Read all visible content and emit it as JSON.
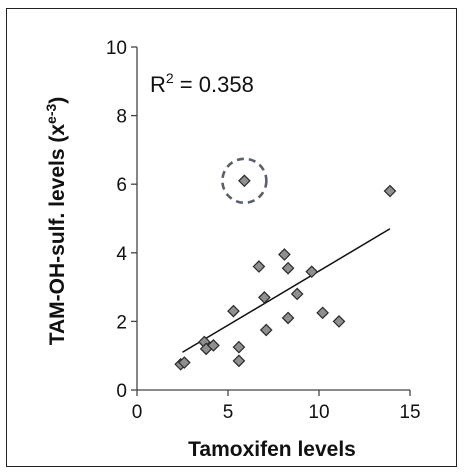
{
  "chart_data": {
    "type": "scatter",
    "title": "",
    "xlabel": "Tamoxifen levels",
    "ylabel_main": "TAM-OH-sulf. levels (x",
    "ylabel_sup": "e-3",
    "ylabel_close": ")",
    "xlim": [
      0,
      15
    ],
    "ylim": [
      0,
      10
    ],
    "xticks": [
      "0",
      "5",
      "10",
      "15"
    ],
    "yticks": [
      "0",
      "2",
      "4",
      "6",
      "8",
      "10"
    ],
    "grid": false,
    "annotation": {
      "r2_label": "R",
      "r2_sup": "2",
      "r2_value": " = 0.358"
    },
    "trendline": {
      "x": [
        2.5,
        13.9
      ],
      "y": [
        1.1,
        4.7
      ]
    },
    "points": [
      {
        "x": 2.4,
        "y": 0.75
      },
      {
        "x": 2.6,
        "y": 0.8
      },
      {
        "x": 3.7,
        "y": 1.4
      },
      {
        "x": 3.8,
        "y": 1.2
      },
      {
        "x": 4.2,
        "y": 1.3
      },
      {
        "x": 5.3,
        "y": 2.3
      },
      {
        "x": 5.6,
        "y": 0.85
      },
      {
        "x": 5.6,
        "y": 1.25
      },
      {
        "x": 5.9,
        "y": 6.1
      },
      {
        "x": 6.7,
        "y": 3.6
      },
      {
        "x": 7.0,
        "y": 2.7
      },
      {
        "x": 7.1,
        "y": 1.75
      },
      {
        "x": 8.1,
        "y": 3.95
      },
      {
        "x": 8.3,
        "y": 3.55
      },
      {
        "x": 8.3,
        "y": 2.1
      },
      {
        "x": 8.8,
        "y": 2.8
      },
      {
        "x": 9.6,
        "y": 3.45
      },
      {
        "x": 10.2,
        "y": 2.25
      },
      {
        "x": 11.1,
        "y": 2.0
      },
      {
        "x": 13.9,
        "y": 5.8
      }
    ],
    "outlier_highlight": {
      "x": 5.9,
      "y": 6.1,
      "style": "dashed-circle",
      "color": "#5a5f6e"
    },
    "colors": {
      "marker_fill": "#8f8f8f",
      "marker_stroke": "#2a2a2a",
      "axis": "#444444"
    }
  }
}
